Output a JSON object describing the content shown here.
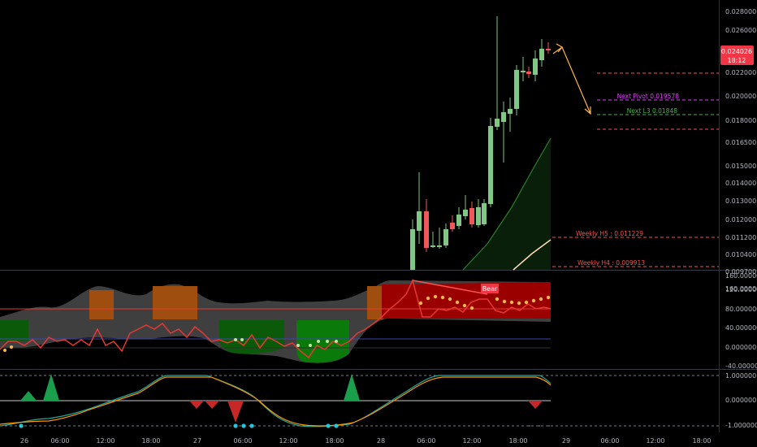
{
  "price_axis": {
    "labels": [
      "0.028000",
      "0.026000",
      "0.022000",
      "0.020000",
      "0.018000",
      "0.016500",
      "0.015000",
      "0.014000",
      "0.013000",
      "0.012000",
      "0.011200",
      "0.010400",
      "0.009700"
    ],
    "current_price": "0.024026",
    "countdown": "18:12",
    "current_color": "#f23645"
  },
  "levels": {
    "next_pivot": "Next Pivot 0.019578",
    "next_l3": "Next L3 0.01848",
    "weekly_h5": "Weekly H5 : 0.011229",
    "weekly_h4": "Weekly H4 : 0.009913"
  },
  "osc_axis": {
    "labels": [
      "160.000000",
      "120.000000",
      "80.000000",
      "40.000000",
      "0.000000",
      "-40.000000"
    ],
    "bear_label": "Bear"
  },
  "bottom_axis": {
    "labels": [
      "1.000000",
      "0.000000",
      "-1.000000"
    ]
  },
  "time_axis": {
    "labels": [
      "26",
      "06:00",
      "12:00",
      "18:00",
      "27",
      "06:00",
      "12:00",
      "18:00",
      "28",
      "06:00",
      "12:00",
      "18:00",
      "29",
      "06:00",
      "12:00",
      "18:00"
    ]
  },
  "colors": {
    "bull": "#81c784",
    "bear": "#f0575a",
    "pivot": "#e040fb",
    "l3": "#4caf50",
    "weekly": "#ef5350",
    "arrow": "#ffb74d"
  }
}
